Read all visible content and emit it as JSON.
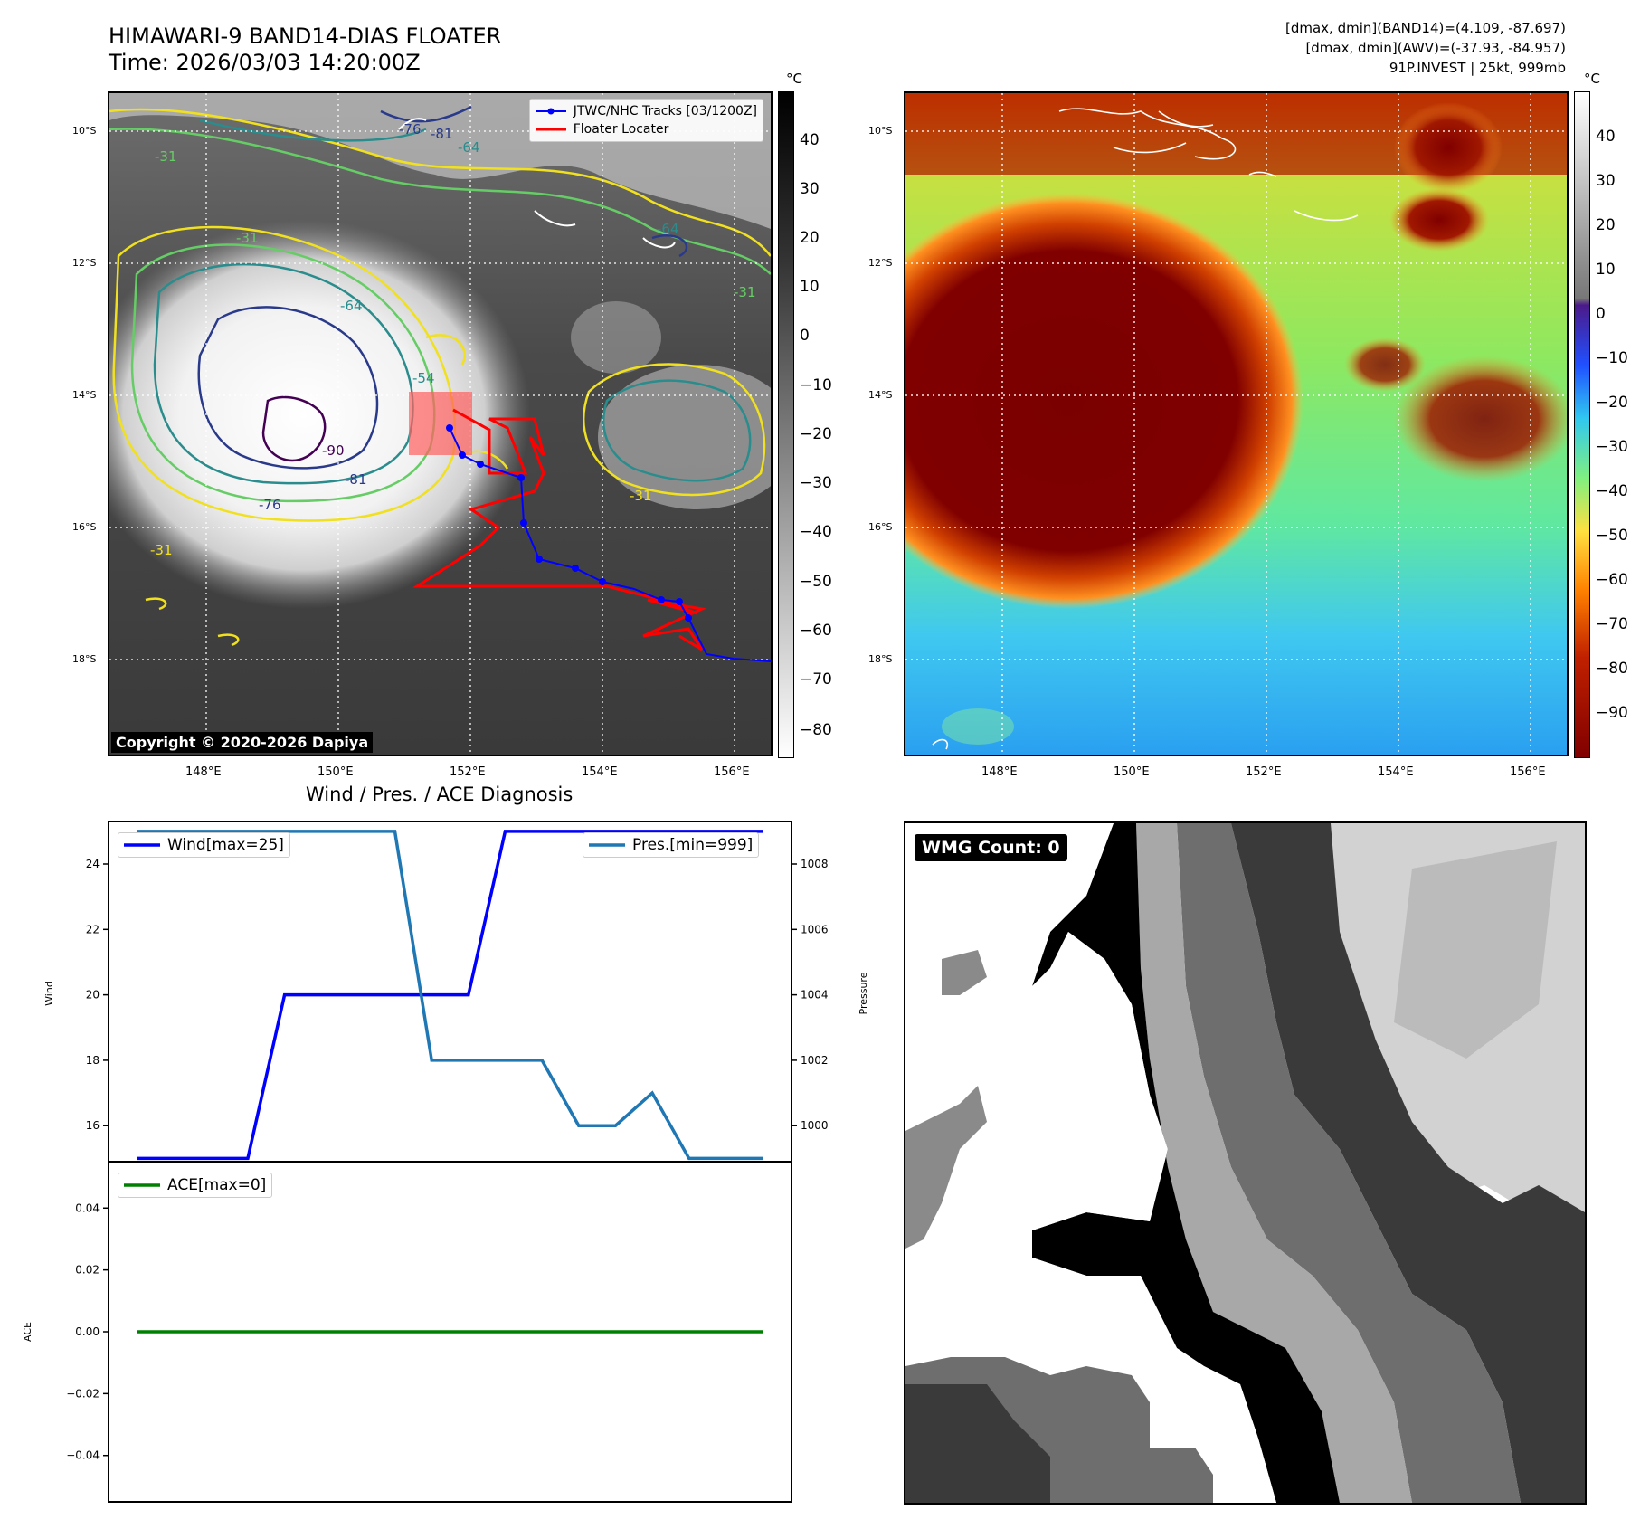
{
  "header": {
    "title_line1": "HIMAWARI-9 BAND14-DIAS FLOATER",
    "title_line2": "Time: 2026/03/03 14:20:00Z",
    "info_line1": "[dmax, dmin](BAND14)=(4.109, -87.697)",
    "info_line2": "[dmax, dmin](AWV)=(-37.93, -84.957)",
    "info_line3": "91P.INVEST | 25kt, 999mb"
  },
  "maps": {
    "lat_labels": [
      "10°S",
      "12°S",
      "14°S",
      "16°S",
      "18°S"
    ],
    "lon_labels": [
      "148°E",
      "150°E",
      "152°E",
      "154°E",
      "156°E"
    ],
    "unit": "°C",
    "contour_labels": [
      "-31",
      "-31",
      "-31",
      "-31",
      "-64",
      "-64",
      "-64",
      "-76",
      "-76",
      "-81",
      "-81",
      "-90",
      "-54",
      "-31"
    ],
    "legend": {
      "tracks": "JTWC/NHC Tracks [03/1200Z]",
      "floater": "Floater Locater"
    },
    "copyright": "Copyright © 2020-2026 Dapiya",
    "left_colorbar_ticks": [
      "40",
      "30",
      "20",
      "10",
      "0",
      "−10",
      "−20",
      "−30",
      "−40",
      "−50",
      "−60",
      "−70",
      "−80"
    ],
    "right_colorbar_ticks": [
      "40",
      "30",
      "20",
      "10",
      "0",
      "−10",
      "−20",
      "−30",
      "−40",
      "−50",
      "−60",
      "−70",
      "−80",
      "−90"
    ],
    "colors": {
      "track": "#0000ff",
      "floater": "#ff0000",
      "contour_yellow": "#f0e020",
      "contour_green": "#66cc66",
      "contour_teal": "#2a8c8c",
      "contour_navy": "#2a3a8a",
      "contour_purple": "#440154"
    }
  },
  "chart_data": [
    {
      "type": "line",
      "title": "Wind / Pres. / ACE Diagnosis",
      "ylabel_left": "Wind",
      "ylabel_right": "Pressure",
      "x": [
        0,
        1,
        2,
        3,
        4,
        5,
        6,
        7,
        8,
        9,
        10,
        11,
        12,
        13,
        14,
        15,
        16,
        17
      ],
      "series": [
        {
          "name": "Wind[max=25]",
          "axis": "left",
          "color": "#0000ff",
          "values": [
            15,
            15,
            15,
            15,
            20,
            20,
            20,
            20,
            20,
            20,
            25,
            25,
            25,
            25,
            25,
            25,
            25,
            25
          ]
        },
        {
          "name": "Pres.[min=999]",
          "axis": "right",
          "color": "#1f77b4",
          "values": [
            1009,
            1009,
            1009,
            1009,
            1009,
            1009,
            1009,
            1009,
            1002,
            1002,
            1002,
            1002,
            1000,
            1000,
            1001,
            999,
            999,
            999
          ]
        }
      ],
      "ylim_left": [
        14.9,
        25.3
      ],
      "ylim_right": [
        998.9,
        1009.3
      ],
      "yticks_left": [
        "16",
        "18",
        "20",
        "22",
        "24"
      ],
      "yticks_right": [
        "1000",
        "1002",
        "1004",
        "1006",
        "1008"
      ]
    },
    {
      "type": "line",
      "ylabel": "ACE",
      "series": [
        {
          "name": "ACE[max=0]",
          "color": "#008000",
          "values": [
            0,
            0,
            0,
            0,
            0,
            0,
            0,
            0,
            0,
            0,
            0,
            0,
            0,
            0,
            0,
            0,
            0,
            0
          ]
        }
      ],
      "ylim": [
        -0.055,
        0.055
      ],
      "yticks": [
        "0.04",
        "0.02",
        "0.00",
        "−0.02",
        "−0.04"
      ]
    }
  ],
  "wmg": {
    "count_label": "WMG Count: 0"
  }
}
